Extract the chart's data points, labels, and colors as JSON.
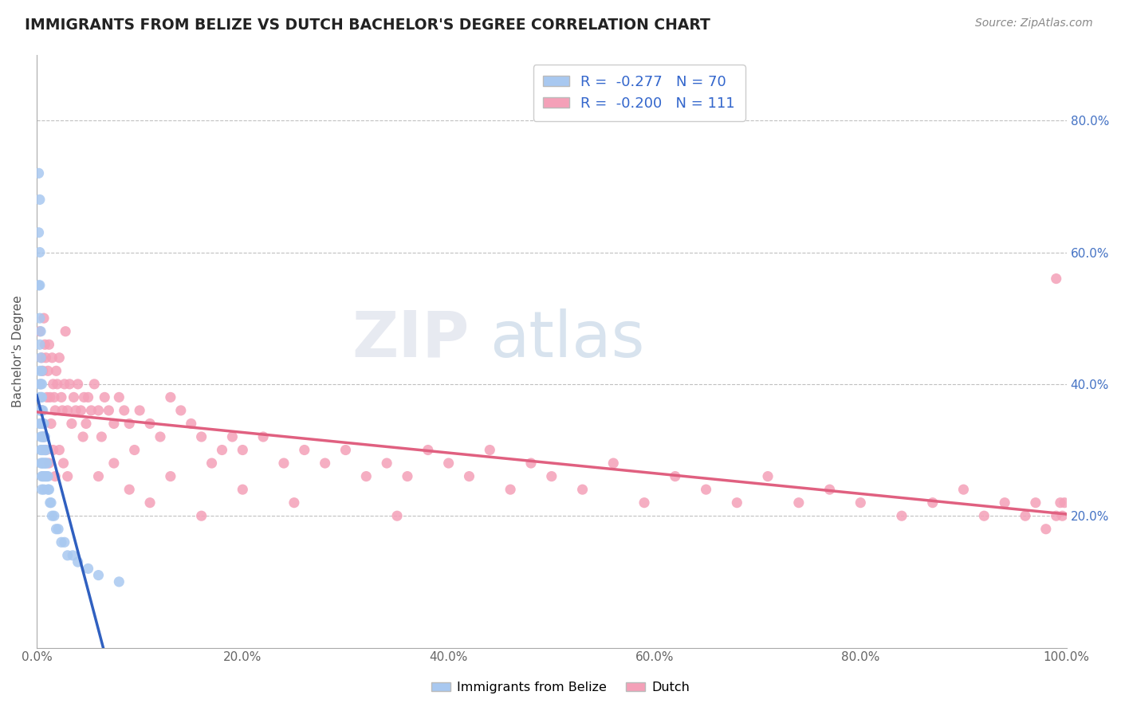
{
  "title": "IMMIGRANTS FROM BELIZE VS DUTCH BACHELOR'S DEGREE CORRELATION CHART",
  "source": "Source: ZipAtlas.com",
  "ylabel": "Bachelor's Degree",
  "xlim": [
    0.0,
    1.0
  ],
  "ylim": [
    0.0,
    0.9
  ],
  "xticks": [
    0.0,
    0.2,
    0.4,
    0.6,
    0.8,
    1.0
  ],
  "xtick_labels": [
    "0.0%",
    "20.0%",
    "40.0%",
    "60.0%",
    "80.0%",
    "100.0%"
  ],
  "yticks_right": [
    0.2,
    0.4,
    0.6,
    0.8
  ],
  "ytick_labels_right": [
    "20.0%",
    "40.0%",
    "60.0%",
    "80.0%"
  ],
  "belize_color": "#a8c8f0",
  "dutch_color": "#f4a0b8",
  "belize_line_color": "#3060c0",
  "dutch_line_color": "#e06080",
  "belize_R": -0.277,
  "belize_N": 70,
  "dutch_R": -0.2,
  "dutch_N": 111,
  "legend_labels": [
    "Immigrants from Belize",
    "Dutch"
  ],
  "belize_x": [
    0.002,
    0.002,
    0.002,
    0.003,
    0.003,
    0.003,
    0.003,
    0.003,
    0.003,
    0.003,
    0.003,
    0.003,
    0.003,
    0.004,
    0.004,
    0.004,
    0.004,
    0.004,
    0.004,
    0.004,
    0.004,
    0.004,
    0.005,
    0.005,
    0.005,
    0.005,
    0.005,
    0.005,
    0.005,
    0.005,
    0.005,
    0.005,
    0.006,
    0.006,
    0.006,
    0.006,
    0.006,
    0.006,
    0.007,
    0.007,
    0.007,
    0.007,
    0.007,
    0.007,
    0.008,
    0.008,
    0.008,
    0.008,
    0.009,
    0.009,
    0.009,
    0.01,
    0.01,
    0.011,
    0.011,
    0.012,
    0.013,
    0.014,
    0.015,
    0.017,
    0.019,
    0.021,
    0.024,
    0.027,
    0.03,
    0.035,
    0.04,
    0.05,
    0.06,
    0.08
  ],
  "belize_y": [
    0.72,
    0.63,
    0.55,
    0.68,
    0.6,
    0.55,
    0.5,
    0.46,
    0.42,
    0.4,
    0.38,
    0.36,
    0.34,
    0.48,
    0.44,
    0.4,
    0.38,
    0.36,
    0.34,
    0.32,
    0.3,
    0.28,
    0.42,
    0.4,
    0.38,
    0.36,
    0.34,
    0.32,
    0.3,
    0.28,
    0.26,
    0.24,
    0.36,
    0.34,
    0.32,
    0.3,
    0.28,
    0.26,
    0.34,
    0.32,
    0.3,
    0.28,
    0.26,
    0.24,
    0.32,
    0.3,
    0.28,
    0.26,
    0.3,
    0.28,
    0.26,
    0.28,
    0.26,
    0.26,
    0.24,
    0.24,
    0.22,
    0.22,
    0.2,
    0.2,
    0.18,
    0.18,
    0.16,
    0.16,
    0.14,
    0.14,
    0.13,
    0.12,
    0.11,
    0.1
  ],
  "dutch_x": [
    0.003,
    0.005,
    0.006,
    0.007,
    0.008,
    0.009,
    0.01,
    0.011,
    0.012,
    0.013,
    0.015,
    0.016,
    0.017,
    0.018,
    0.019,
    0.02,
    0.022,
    0.024,
    0.025,
    0.027,
    0.028,
    0.03,
    0.032,
    0.034,
    0.036,
    0.038,
    0.04,
    0.043,
    0.046,
    0.048,
    0.05,
    0.053,
    0.056,
    0.06,
    0.063,
    0.066,
    0.07,
    0.075,
    0.08,
    0.085,
    0.09,
    0.095,
    0.1,
    0.11,
    0.12,
    0.13,
    0.14,
    0.15,
    0.16,
    0.17,
    0.18,
    0.19,
    0.2,
    0.22,
    0.24,
    0.26,
    0.28,
    0.3,
    0.32,
    0.34,
    0.36,
    0.38,
    0.4,
    0.42,
    0.44,
    0.46,
    0.48,
    0.5,
    0.53,
    0.56,
    0.59,
    0.62,
    0.65,
    0.68,
    0.71,
    0.74,
    0.77,
    0.8,
    0.84,
    0.87,
    0.9,
    0.92,
    0.94,
    0.96,
    0.97,
    0.98,
    0.99,
    0.994,
    0.996,
    0.998,
    0.005,
    0.007,
    0.009,
    0.012,
    0.014,
    0.016,
    0.018,
    0.022,
    0.026,
    0.03,
    0.045,
    0.06,
    0.075,
    0.09,
    0.11,
    0.13,
    0.16,
    0.2,
    0.25,
    0.35,
    0.99
  ],
  "dutch_y": [
    0.48,
    0.44,
    0.42,
    0.5,
    0.46,
    0.44,
    0.38,
    0.42,
    0.46,
    0.38,
    0.44,
    0.4,
    0.38,
    0.36,
    0.42,
    0.4,
    0.44,
    0.38,
    0.36,
    0.4,
    0.48,
    0.36,
    0.4,
    0.34,
    0.38,
    0.36,
    0.4,
    0.36,
    0.38,
    0.34,
    0.38,
    0.36,
    0.4,
    0.36,
    0.32,
    0.38,
    0.36,
    0.34,
    0.38,
    0.36,
    0.34,
    0.3,
    0.36,
    0.34,
    0.32,
    0.38,
    0.36,
    0.34,
    0.32,
    0.28,
    0.3,
    0.32,
    0.3,
    0.32,
    0.28,
    0.3,
    0.28,
    0.3,
    0.26,
    0.28,
    0.26,
    0.3,
    0.28,
    0.26,
    0.3,
    0.24,
    0.28,
    0.26,
    0.24,
    0.28,
    0.22,
    0.26,
    0.24,
    0.22,
    0.26,
    0.22,
    0.24,
    0.22,
    0.2,
    0.22,
    0.24,
    0.2,
    0.22,
    0.2,
    0.22,
    0.18,
    0.2,
    0.22,
    0.2,
    0.22,
    0.36,
    0.32,
    0.3,
    0.28,
    0.34,
    0.3,
    0.26,
    0.3,
    0.28,
    0.26,
    0.32,
    0.26,
    0.28,
    0.24,
    0.22,
    0.26,
    0.2,
    0.24,
    0.22,
    0.2,
    0.56
  ]
}
